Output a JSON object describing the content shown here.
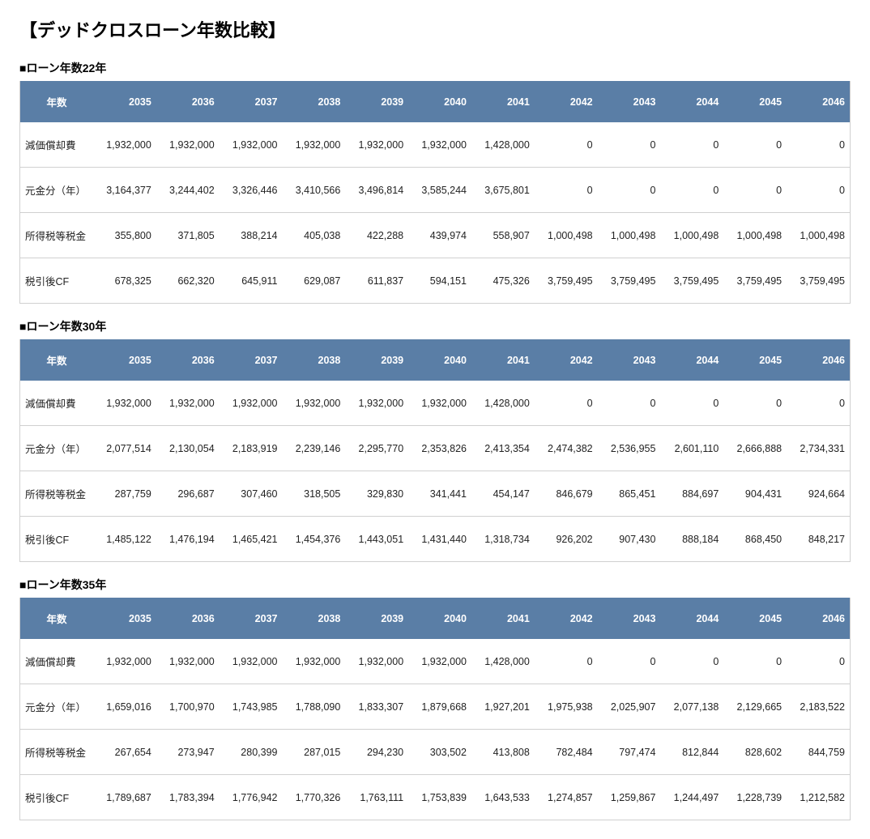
{
  "page_title": "【デッドクロスローン年数比較】",
  "header_label": "年数",
  "years": [
    "2035",
    "2036",
    "2037",
    "2038",
    "2039",
    "2040",
    "2041",
    "2042",
    "2043",
    "2044",
    "2045",
    "2046"
  ],
  "row_labels": [
    "減価償却費",
    "元金分（年）",
    "所得税等税金",
    "税引後CF"
  ],
  "tables": [
    {
      "title": "■ローン年数22年",
      "rows": [
        [
          "1,932,000",
          "1,932,000",
          "1,932,000",
          "1,932,000",
          "1,932,000",
          "1,932,000",
          "1,428,000",
          "0",
          "0",
          "0",
          "0",
          "0"
        ],
        [
          "3,164,377",
          "3,244,402",
          "3,326,446",
          "3,410,566",
          "3,496,814",
          "3,585,244",
          "3,675,801",
          "0",
          "0",
          "0",
          "0",
          "0"
        ],
        [
          "355,800",
          "371,805",
          "388,214",
          "405,038",
          "422,288",
          "439,974",
          "558,907",
          "1,000,498",
          "1,000,498",
          "1,000,498",
          "1,000,498",
          "1,000,498"
        ],
        [
          "678,325",
          "662,320",
          "645,911",
          "629,087",
          "611,837",
          "594,151",
          "475,326",
          "3,759,495",
          "3,759,495",
          "3,759,495",
          "3,759,495",
          "3,759,495"
        ]
      ]
    },
    {
      "title": "■ローン年数30年",
      "rows": [
        [
          "1,932,000",
          "1,932,000",
          "1,932,000",
          "1,932,000",
          "1,932,000",
          "1,932,000",
          "1,428,000",
          "0",
          "0",
          "0",
          "0",
          "0"
        ],
        [
          "2,077,514",
          "2,130,054",
          "2,183,919",
          "2,239,146",
          "2,295,770",
          "2,353,826",
          "2,413,354",
          "2,474,382",
          "2,536,955",
          "2,601,110",
          "2,666,888",
          "2,734,331"
        ],
        [
          "287,759",
          "296,687",
          "307,460",
          "318,505",
          "329,830",
          "341,441",
          "454,147",
          "846,679",
          "865,451",
          "884,697",
          "904,431",
          "924,664"
        ],
        [
          "1,485,122",
          "1,476,194",
          "1,465,421",
          "1,454,376",
          "1,443,051",
          "1,431,440",
          "1,318,734",
          "926,202",
          "907,430",
          "888,184",
          "868,450",
          "848,217"
        ]
      ]
    },
    {
      "title": "■ローン年数35年",
      "rows": [
        [
          "1,932,000",
          "1,932,000",
          "1,932,000",
          "1,932,000",
          "1,932,000",
          "1,932,000",
          "1,428,000",
          "0",
          "0",
          "0",
          "0",
          "0"
        ],
        [
          "1,659,016",
          "1,700,970",
          "1,743,985",
          "1,788,090",
          "1,833,307",
          "1,879,668",
          "1,927,201",
          "1,975,938",
          "2,025,907",
          "2,077,138",
          "2,129,665",
          "2,183,522"
        ],
        [
          "267,654",
          "273,947",
          "280,399",
          "287,015",
          "294,230",
          "303,502",
          "413,808",
          "782,484",
          "797,474",
          "812,844",
          "828,602",
          "844,759"
        ],
        [
          "1,789,687",
          "1,783,394",
          "1,776,942",
          "1,770,326",
          "1,763,111",
          "1,753,839",
          "1,643,533",
          "1,274,857",
          "1,259,867",
          "1,244,497",
          "1,228,739",
          "1,212,582"
        ]
      ]
    }
  ],
  "styles": {
    "header_bg": "#5a7ea6",
    "header_text": "#ffffff",
    "cell_text": "#222222",
    "border_color": "#d0d0d0",
    "background": "#ffffff",
    "title_fontsize": 22,
    "section_title_fontsize": 14,
    "cell_fontsize": 12.5
  }
}
